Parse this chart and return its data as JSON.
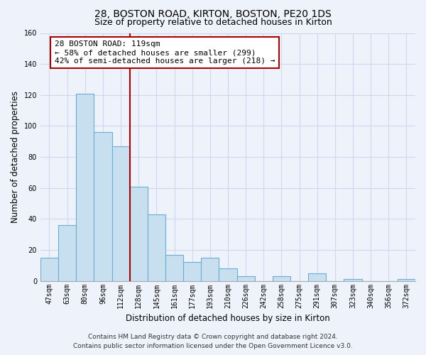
{
  "title": "28, BOSTON ROAD, KIRTON, BOSTON, PE20 1DS",
  "subtitle": "Size of property relative to detached houses in Kirton",
  "xlabel": "Distribution of detached houses by size in Kirton",
  "ylabel": "Number of detached properties",
  "bar_labels": [
    "47sqm",
    "63sqm",
    "80sqm",
    "96sqm",
    "112sqm",
    "128sqm",
    "145sqm",
    "161sqm",
    "177sqm",
    "193sqm",
    "210sqm",
    "226sqm",
    "242sqm",
    "258sqm",
    "275sqm",
    "291sqm",
    "307sqm",
    "323sqm",
    "340sqm",
    "356sqm",
    "372sqm"
  ],
  "bar_values": [
    15,
    36,
    121,
    96,
    87,
    61,
    43,
    17,
    12,
    15,
    8,
    3,
    0,
    3,
    0,
    5,
    0,
    1,
    0,
    0,
    1
  ],
  "bar_color": "#c8dff0",
  "bar_edge_color": "#6aaed6",
  "highlight_line_color": "#aa0000",
  "annotation_text_line1": "28 BOSTON ROAD: 119sqm",
  "annotation_text_line2": "← 58% of detached houses are smaller (299)",
  "annotation_text_line3": "42% of semi-detached houses are larger (218) →",
  "annotation_box_color": "#ffffff",
  "annotation_box_edge": "#aa0000",
  "ylim": [
    0,
    160
  ],
  "yticks": [
    0,
    20,
    40,
    60,
    80,
    100,
    120,
    140,
    160
  ],
  "footnote_line1": "Contains HM Land Registry data © Crown copyright and database right 2024.",
  "footnote_line2": "Contains public sector information licensed under the Open Government Licence v3.0.",
  "bg_color": "#eef2fb",
  "plot_bg_color": "#eef2fb",
  "grid_color": "#d0d8ee",
  "title_fontsize": 10,
  "subtitle_fontsize": 9,
  "axis_label_fontsize": 8.5,
  "tick_fontsize": 7,
  "annotation_fontsize": 8,
  "footnote_fontsize": 6.5
}
